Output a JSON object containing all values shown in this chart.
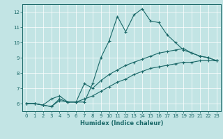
{
  "xlabel": "Humidex (Indice chaleur)",
  "xlim": [
    -0.5,
    23.5
  ],
  "ylim": [
    5.5,
    12.5
  ],
  "yticks": [
    6,
    7,
    8,
    9,
    10,
    11,
    12
  ],
  "xticks": [
    0,
    1,
    2,
    3,
    4,
    5,
    6,
    7,
    8,
    9,
    10,
    11,
    12,
    13,
    14,
    15,
    16,
    17,
    18,
    19,
    20,
    21,
    22,
    23
  ],
  "background_color": "#c2e4e4",
  "grid_color": "#ffffff",
  "line_color": "#1a6868",
  "line1_x": [
    0,
    1,
    2,
    3,
    4,
    5,
    6,
    7,
    8,
    9,
    10,
    11,
    12,
    13,
    14,
    15,
    16,
    17,
    18,
    19,
    20,
    21,
    22,
    23
  ],
  "line1_y": [
    6.0,
    6.0,
    5.9,
    6.3,
    6.5,
    6.1,
    6.1,
    6.1,
    7.3,
    9.0,
    10.1,
    11.7,
    10.7,
    11.8,
    12.2,
    11.4,
    11.3,
    10.5,
    10.0,
    9.5,
    9.3,
    9.1,
    9.0,
    8.8
  ],
  "line2_x": [
    0,
    1,
    2,
    3,
    4,
    5,
    6,
    7,
    8,
    9,
    10,
    11,
    12,
    13,
    14,
    15,
    16,
    17,
    18,
    19,
    20,
    21,
    22,
    23
  ],
  "line2_y": [
    6.0,
    6.0,
    5.9,
    5.8,
    6.3,
    6.1,
    6.1,
    7.3,
    7.0,
    7.5,
    7.9,
    8.2,
    8.5,
    8.7,
    8.9,
    9.1,
    9.3,
    9.4,
    9.5,
    9.6,
    9.3,
    9.1,
    9.0,
    8.8
  ],
  "line3_x": [
    0,
    1,
    2,
    3,
    4,
    5,
    6,
    7,
    8,
    9,
    10,
    11,
    12,
    13,
    14,
    15,
    16,
    17,
    18,
    19,
    20,
    21,
    22,
    23
  ],
  "line3_y": [
    6.0,
    6.0,
    5.9,
    5.8,
    6.2,
    6.1,
    6.1,
    6.3,
    6.5,
    6.8,
    7.1,
    7.4,
    7.6,
    7.9,
    8.1,
    8.3,
    8.4,
    8.5,
    8.6,
    8.7,
    8.7,
    8.8,
    8.8,
    8.8
  ]
}
